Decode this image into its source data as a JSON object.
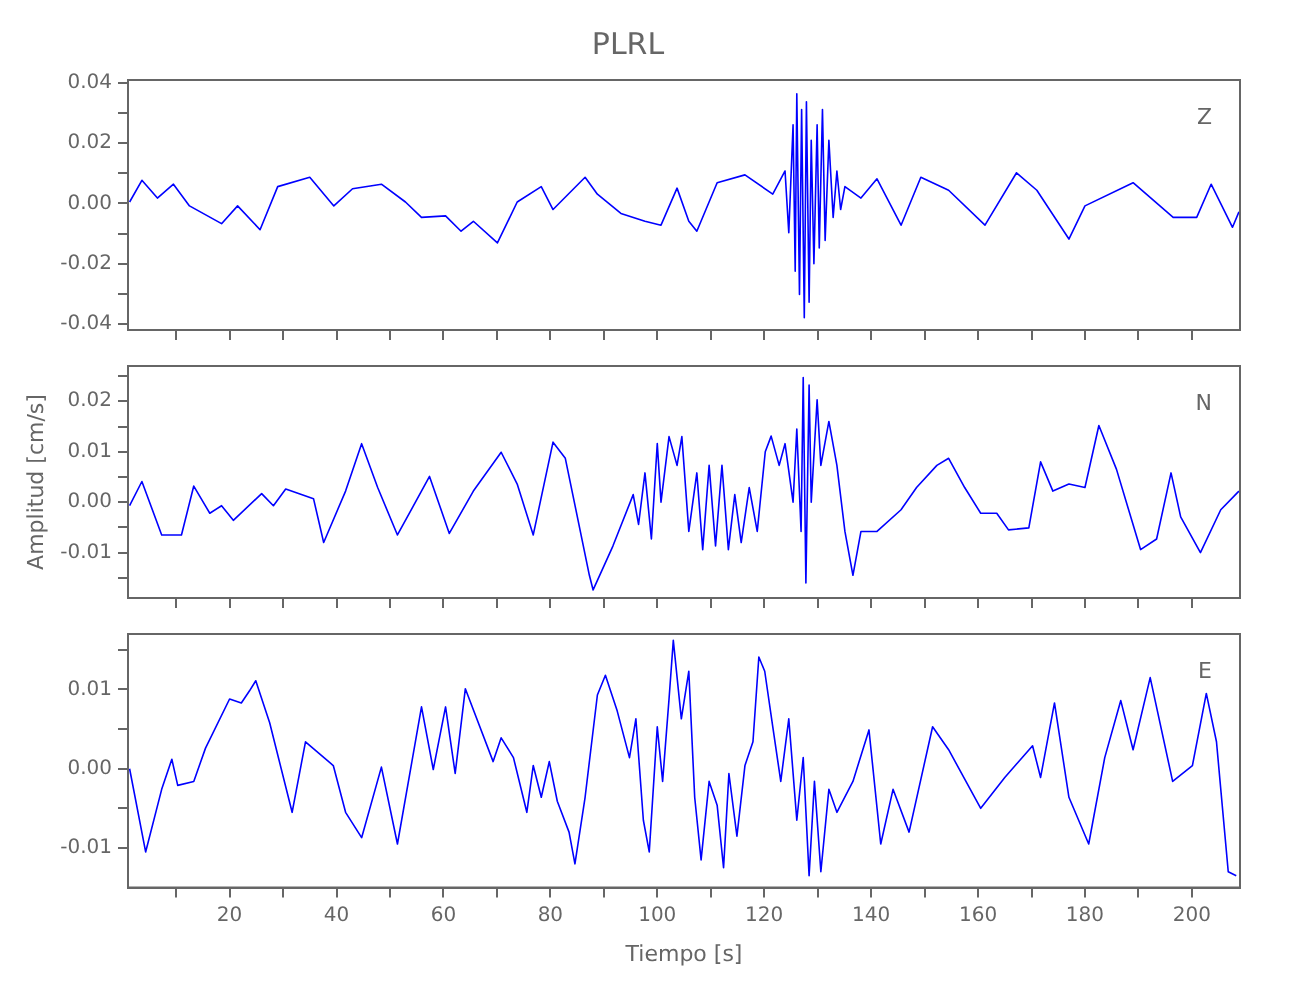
{
  "chart_data": [
    {
      "type": "line",
      "title": "PLRL",
      "annotations": [
        "Z"
      ],
      "color": "#0000ff",
      "grid": false,
      "tick_labels": "y",
      "xlim": [
        1,
        209
      ],
      "xticks": [
        {
          "value": 10,
          "label": null
        },
        {
          "value": 20,
          "label": null
        },
        {
          "value": 30,
          "label": null
        },
        {
          "value": 40,
          "label": null
        },
        {
          "value": 50,
          "label": null
        },
        {
          "value": 60,
          "label": null
        },
        {
          "value": 70,
          "label": null
        },
        {
          "value": 80,
          "label": null
        },
        {
          "value": 90,
          "label": null
        },
        {
          "value": 100,
          "label": null
        },
        {
          "value": 110,
          "label": null
        },
        {
          "value": 120,
          "label": null
        },
        {
          "value": 130,
          "label": null
        },
        {
          "value": 140,
          "label": null
        },
        {
          "value": 150,
          "label": null
        },
        {
          "value": 160,
          "label": null
        },
        {
          "value": 170,
          "label": null
        },
        {
          "value": 180,
          "label": null
        },
        {
          "value": 190,
          "label": null
        },
        {
          "value": 200,
          "label": null
        }
      ],
      "ylim": [
        -0.042,
        0.041
      ],
      "yticks": [
        -0.04,
        {
          "value": -0.03,
          "label": null
        },
        -0.02,
        {
          "value": -0.01,
          "label": null
        },
        {
          "value": 0,
          "label": "0.00"
        },
        {
          "value": 0.01,
          "label": null
        },
        0.02,
        {
          "value": 0.03,
          "label": null
        },
        0.04
      ],
      "x": [
        1.3,
        3.6,
        6.5,
        9.5,
        12.5,
        18.5,
        21.5,
        25.7,
        29,
        35,
        39.5,
        43,
        48.4,
        52.9,
        55.9,
        60.4,
        63.3,
        65.6,
        70.1,
        73.8,
        78.3,
        80.5,
        86.5,
        88.8,
        93.2,
        97.7,
        100.7,
        103.7,
        105.9,
        107.4,
        111.2,
        116.4,
        121.6,
        123.9,
        124.6,
        125.4,
        125.8,
        126.1,
        126.6,
        127,
        127.5,
        127.9,
        128.4,
        128.8,
        129.3,
        129.9,
        130.3,
        130.9,
        131.4,
        132.1,
        132.9,
        133.6,
        134.3,
        135.1,
        138.1,
        141.1,
        145.6,
        149.3,
        154.5,
        161.3,
        167.2,
        171,
        177,
        180,
        189,
        196.5,
        200.9,
        203.6,
        207.6,
        208.8
      ],
      "values": [
        0.0005,
        0.0077,
        0.0018,
        0.0064,
        -0.0008,
        -0.0067,
        -0.0008,
        -0.0087,
        0.0056,
        0.0087,
        -0.0008,
        0.0049,
        0.0064,
        0.0005,
        -0.0046,
        -0.0041,
        -0.0092,
        -0.0059,
        -0.0131,
        0.0005,
        0.0056,
        -0.002,
        0.0087,
        0.0031,
        -0.0033,
        -0.0059,
        -0.0072,
        0.0051,
        -0.0059,
        -0.0092,
        0.0069,
        0.0095,
        0.0031,
        0.0108,
        -0.0097,
        0.0261,
        -0.0225,
        0.0364,
        -0.0302,
        0.0312,
        -0.0379,
        0.0338,
        -0.0328,
        0.021,
        -0.02,
        0.0261,
        -0.0148,
        0.0312,
        -0.0123,
        0.021,
        -0.0046,
        0.0108,
        -0.002,
        0.0056,
        0.0018,
        0.0082,
        -0.0072,
        0.0087,
        0.0044,
        -0.0072,
        0.0102,
        0.0044,
        -0.0118,
        -0.0008,
        0.0069,
        -0.0046,
        -0.0046,
        0.0064,
        -0.0079,
        -0.0028
      ]
    },
    {
      "type": "line",
      "ylabel": "Amplitud [cm/s]",
      "annotations": [
        "N"
      ],
      "color": "#0000ff",
      "grid": false,
      "tick_labels": "y",
      "xlim": [
        1,
        209
      ],
      "xticks": [
        {
          "value": 10,
          "label": null
        },
        {
          "value": 20,
          "label": null
        },
        {
          "value": 30,
          "label": null
        },
        {
          "value": 40,
          "label": null
        },
        {
          "value": 50,
          "label": null
        },
        {
          "value": 60,
          "label": null
        },
        {
          "value": 70,
          "label": null
        },
        {
          "value": 80,
          "label": null
        },
        {
          "value": 90,
          "label": null
        },
        {
          "value": 100,
          "label": null
        },
        {
          "value": 110,
          "label": null
        },
        {
          "value": 120,
          "label": null
        },
        {
          "value": 130,
          "label": null
        },
        {
          "value": 140,
          "label": null
        },
        {
          "value": 150,
          "label": null
        },
        {
          "value": 160,
          "label": null
        },
        {
          "value": 170,
          "label": null
        },
        {
          "value": 180,
          "label": null
        },
        {
          "value": 190,
          "label": null
        },
        {
          "value": 200,
          "label": null
        }
      ],
      "ylim": [
        -0.019,
        0.027
      ],
      "yticks": [
        {
          "value": -0.015,
          "label": null
        },
        -0.01,
        {
          "value": -0.005,
          "label": null
        },
        {
          "value": 0,
          "label": "0.00"
        },
        {
          "value": 0.005,
          "label": null
        },
        0.01,
        {
          "value": 0.015,
          "label": null
        },
        0.02,
        {
          "value": 0.025,
          "label": null
        }
      ],
      "x": [
        1.3,
        3.6,
        7.3,
        11,
        13.3,
        16.3,
        18.5,
        20.7,
        26,
        28.2,
        30.5,
        35.7,
        37.6,
        41.7,
        44.7,
        47.7,
        51.4,
        57.4,
        61.1,
        65.6,
        70.8,
        73.8,
        76.8,
        80.5,
        82.8,
        87.3,
        88,
        91.7,
        95.5,
        96.5,
        97.7,
        98.9,
        100,
        100.7,
        102.2,
        103.7,
        104.6,
        105.9,
        107.4,
        108.5,
        109.7,
        110.9,
        112.1,
        113.3,
        114.5,
        115.7,
        117.2,
        118.7,
        120.2,
        121.3,
        122.8,
        123.9,
        125.4,
        126.1,
        126.9,
        127.3,
        127.8,
        128.4,
        128.8,
        129.9,
        130.6,
        132.1,
        133.6,
        135.1,
        136.6,
        138.1,
        141.1,
        145.6,
        148.5,
        152.3,
        154.5,
        157.5,
        160.5,
        163.5,
        165.7,
        169.5,
        171.7,
        174,
        177,
        180,
        182.6,
        185.9,
        190.4,
        193.4,
        196.1,
        197.9,
        201.6,
        205.4,
        208.8
      ],
      "values": [
        -0.0007,
        0.0041,
        -0.0065,
        -0.0065,
        0.0032,
        -0.0022,
        -0.0007,
        -0.0036,
        0.0017,
        -0.0007,
        0.0026,
        0.0007,
        -0.008,
        0.0022,
        0.0116,
        0.0029,
        -0.0065,
        0.0051,
        -0.0062,
        0.0022,
        0.0099,
        0.0036,
        -0.0065,
        0.0119,
        0.0087,
        -0.0145,
        -0.0174,
        -0.0087,
        0.0015,
        -0.0044,
        0.0058,
        -0.0073,
        0.0116,
        0,
        0.013,
        0.0073,
        0.013,
        -0.0058,
        0.0058,
        -0.0094,
        0.0073,
        -0.0087,
        0.0073,
        -0.0094,
        0.0015,
        -0.008,
        0.0029,
        -0.0058,
        0.01,
        0.0131,
        0.0073,
        0.0116,
        0,
        0.0145,
        -0.0058,
        0.0247,
        -0.016,
        0.0232,
        0,
        0.0203,
        0.0073,
        0.016,
        0.0073,
        -0.0058,
        -0.0145,
        -0.0058,
        -0.0058,
        -0.0015,
        0.0029,
        0.0073,
        0.0087,
        0.0029,
        -0.0022,
        -0.0022,
        -0.0055,
        -0.0051,
        0.008,
        0.0022,
        0.0036,
        0.0029,
        0.0152,
        0.0065,
        -0.0094,
        -0.0073,
        0.0058,
        -0.0029,
        -0.01,
        -0.0015,
        0.0022
      ]
    },
    {
      "type": "line",
      "xlabel": "Tiempo [s]",
      "annotations": [
        "E"
      ],
      "color": "#0000ff",
      "grid": false,
      "xlim": [
        1,
        209
      ],
      "xticks": [
        {
          "value": 10,
          "label": null
        },
        20,
        {
          "value": 30,
          "label": null
        },
        40,
        {
          "value": 50,
          "label": null
        },
        60,
        {
          "value": 70,
          "label": null
        },
        80,
        {
          "value": 90,
          "label": null
        },
        100,
        {
          "value": 110,
          "label": null
        },
        120,
        {
          "value": 130,
          "label": null
        },
        140,
        {
          "value": 150,
          "label": null
        },
        160,
        {
          "value": 170,
          "label": null
        },
        180,
        {
          "value": 190,
          "label": null
        },
        200
      ],
      "ylim": [
        -0.015,
        0.017
      ],
      "yticks": [
        -0.01,
        {
          "value": -0.005,
          "label": null
        },
        {
          "value": 0,
          "label": "0.00"
        },
        {
          "value": 0.005,
          "label": null
        },
        0.01,
        {
          "value": 0.015,
          "label": null
        }
      ],
      "x": [
        1.3,
        4.3,
        7.3,
        9.2,
        10.3,
        13.3,
        15.5,
        20,
        22.2,
        23.7,
        24.9,
        27.5,
        31.7,
        34.2,
        39.4,
        41.7,
        44.7,
        48.4,
        51.4,
        55.9,
        58.1,
        60.4,
        62.2,
        64.1,
        69.3,
        70.8,
        73.1,
        75.6,
        76.8,
        78.3,
        79.8,
        81.3,
        83.5,
        84.6,
        86.5,
        88.8,
        90.3,
        92.5,
        94.8,
        96,
        97.4,
        98.5,
        100,
        101,
        102.2,
        103,
        104.5,
        105.9,
        107,
        108.2,
        109.7,
        111.2,
        112.4,
        113.4,
        114.9,
        116.4,
        117.9,
        119,
        120.1,
        121.6,
        123.1,
        124.6,
        126.1,
        127.3,
        128.4,
        129.4,
        130.6,
        132.1,
        133.6,
        136.6,
        139.6,
        141.8,
        144.1,
        147.1,
        151.5,
        154.5,
        160.5,
        165,
        170.2,
        171.7,
        174.3,
        177,
        180.7,
        183.7,
        186.7,
        189,
        192.2,
        196.4,
        200.1,
        202.7,
        204.6,
        206.8,
        208.3
      ],
      "values": [
        0,
        -0.0105,
        -0.0026,
        0.0012,
        -0.0021,
        -0.0016,
        0.0026,
        0.0088,
        0.0083,
        0.0098,
        0.0111,
        0.0058,
        -0.0055,
        0.0034,
        0.0004,
        -0.0055,
        -0.0087,
        0.0002,
        -0.0095,
        0.0078,
        -0.0001,
        0.0078,
        -0.0006,
        0.0101,
        0.0009,
        0.0039,
        0.0014,
        -0.0055,
        0.0004,
        -0.0036,
        0.0009,
        -0.0041,
        -0.008,
        -0.012,
        -0.0036,
        0.0093,
        0.0118,
        0.0073,
        0.0014,
        0.0063,
        -0.0065,
        -0.0105,
        0.0053,
        -0.0016,
        0.0088,
        0.0162,
        0.0063,
        0.0123,
        -0.0036,
        -0.0115,
        -0.0016,
        -0.0046,
        -0.0125,
        -0.0006,
        -0.0085,
        0.0004,
        0.0034,
        0.0141,
        0.0123,
        0.0053,
        -0.0016,
        0.0063,
        -0.0065,
        0.0014,
        -0.0135,
        -0.0016,
        -0.013,
        -0.0026,
        -0.0055,
        -0.0016,
        0.0049,
        -0.0095,
        -0.0026,
        -0.008,
        0.0053,
        0.0024,
        -0.005,
        -0.0011,
        0.0029,
        -0.0011,
        0.0083,
        -0.0036,
        -0.0095,
        0.0014,
        0.0086,
        0.0024,
        0.0115,
        -0.0016,
        0.0004,
        0.0095,
        0.0034,
        -0.013,
        -0.0135
      ]
    }
  ]
}
